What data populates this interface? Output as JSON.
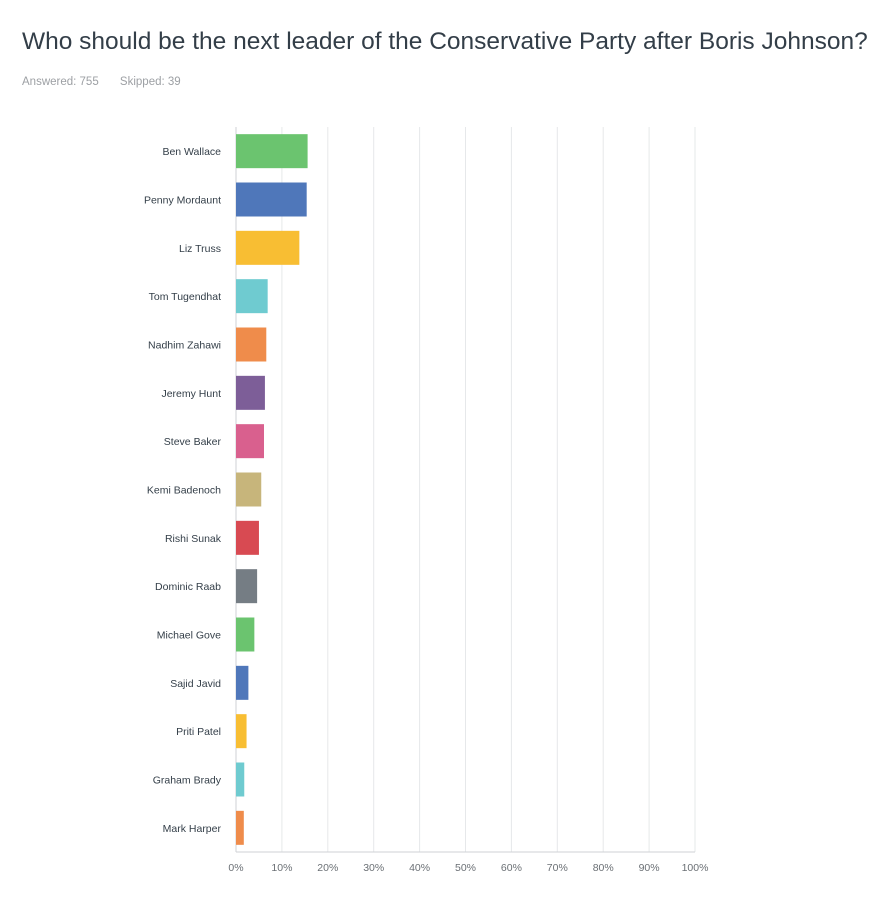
{
  "header": {
    "title": "Who should be the next leader of the Conservative Party after Boris Johnson?",
    "answered": "Answered: 755",
    "skipped": "Skipped: 39"
  },
  "chart_data": {
    "type": "bar",
    "orientation": "horizontal",
    "categories": [
      "Ben Wallace",
      "Penny Mordaunt",
      "Liz Truss",
      "Tom Tugendhat",
      "Nadhim Zahawi",
      "Jeremy Hunt",
      "Steve Baker",
      "Kemi Badenoch",
      "Rishi Sunak",
      "Dominic Raab",
      "Michael Gove",
      "Sajid Javid",
      "Priti Patel",
      "Graham Brady",
      "Mark Harper"
    ],
    "values": [
      15.6,
      15.4,
      13.8,
      6.9,
      6.6,
      6.3,
      6.1,
      5.5,
      5.0,
      4.6,
      4.0,
      2.7,
      2.3,
      1.8,
      1.7
    ],
    "colors": [
      "#6bc46f",
      "#4f77ba",
      "#f8be33",
      "#6fcbd0",
      "#ef8c4b",
      "#7d5e98",
      "#d9608e",
      "#c7b57b",
      "#d84a52",
      "#757d84",
      "#6bc46f",
      "#4f77ba",
      "#f8be33",
      "#6fcbd0",
      "#ef8c4b"
    ],
    "xlim": [
      0,
      100
    ],
    "xticks": [
      "0%",
      "10%",
      "20%",
      "30%",
      "40%",
      "50%",
      "60%",
      "70%",
      "80%",
      "90%",
      "100%"
    ],
    "grid": true,
    "title": "Who should be the next leader of the Conservative Party after Boris Johnson?",
    "xlabel": "",
    "ylabel": ""
  }
}
